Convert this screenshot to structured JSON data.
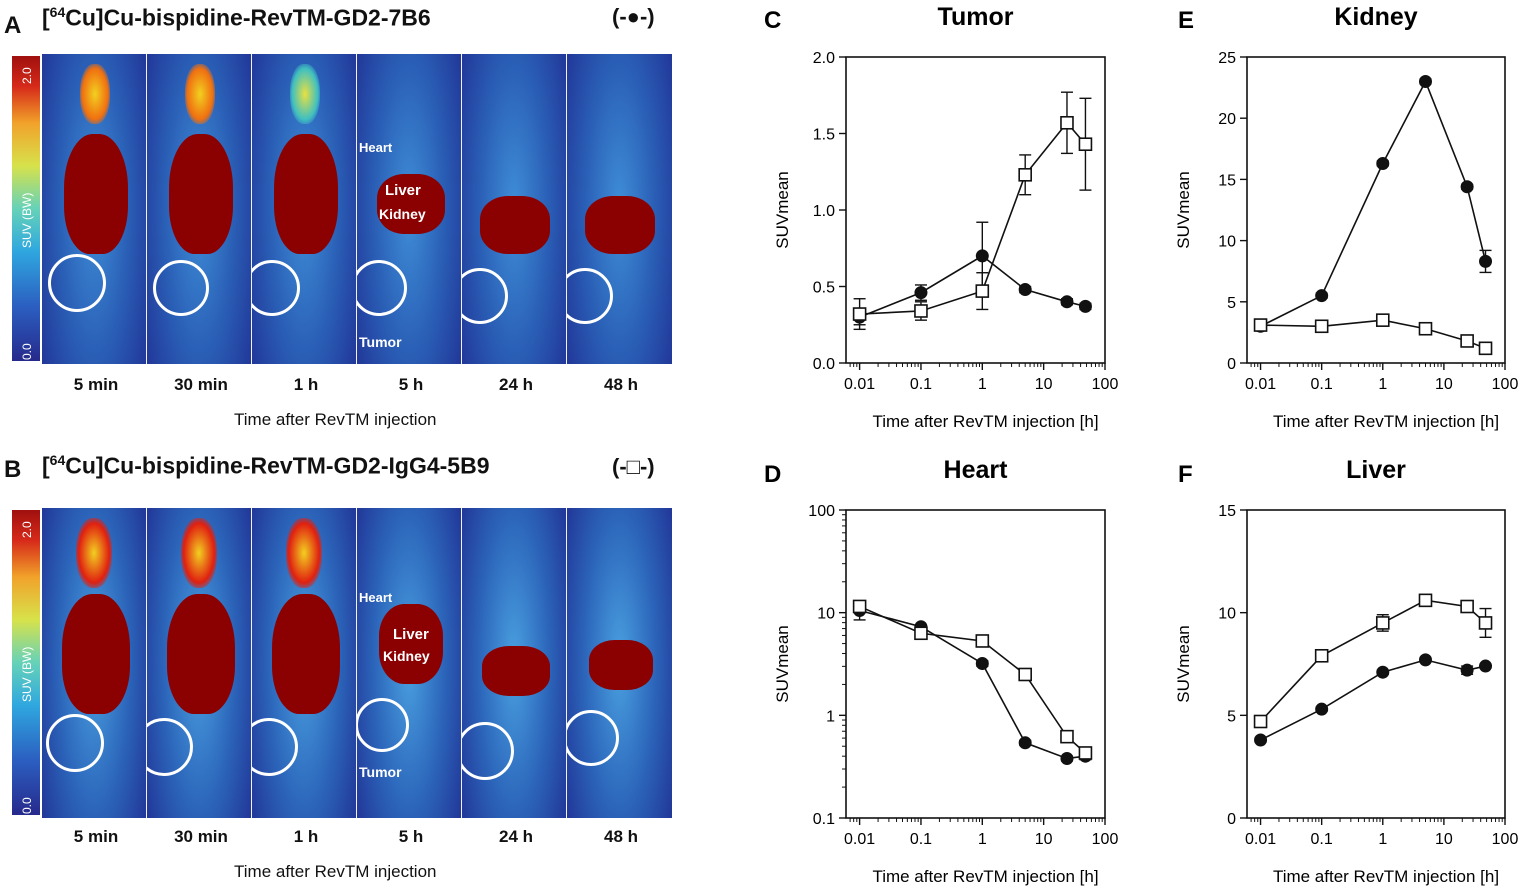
{
  "panelA": {
    "letter": "A",
    "title_prefix": "[",
    "title_sup": "64",
    "title_rest": "Cu]Cu-bispidine-RevTM-GD2-7B6",
    "legend_symbol": "(-●-)",
    "scale": {
      "max": "2.0",
      "min": "0.0",
      "label": "SUV (BW)"
    },
    "timepoints": [
      "5 min",
      "30 min",
      "1 h",
      "5 h",
      "24 h",
      "48 h"
    ],
    "annotations": {
      "heart": "Heart",
      "liver": "Liver",
      "kidney": "Kidney",
      "tumor": "Tumor"
    },
    "xcaption": "Time after RevTM injection"
  },
  "panelB": {
    "letter": "B",
    "title_prefix": "[",
    "title_sup": "64",
    "title_rest": "Cu]Cu-bispidine-RevTM-GD2-IgG4-5B9",
    "legend_symbol": "(-□-)",
    "scale": {
      "max": "2.0",
      "min": "0.0",
      "label": "SUV (BW)"
    },
    "timepoints": [
      "5 min",
      "30 min",
      "1 h",
      "5 h",
      "24 h",
      "48 h"
    ],
    "annotations": {
      "heart": "Heart",
      "liver": "Liver",
      "kidney": "Kidney",
      "tumor": "Tumor"
    },
    "xcaption": "Time after RevTM injection"
  },
  "chart_data": [
    {
      "letter": "C",
      "type": "line",
      "title": "Tumor",
      "xlabel": "Time after RevTM injection [h]",
      "ylabel": "SUVmean",
      "xscale": "log",
      "xlim": [
        0.006,
        100
      ],
      "xticks": [
        0.01,
        0.1,
        1,
        10,
        100
      ],
      "xticklabels": [
        "0.01",
        "0.1",
        "1",
        "10",
        "100"
      ],
      "yscale": "linear",
      "ylim": [
        0,
        2.0
      ],
      "yticks": [
        0,
        0.5,
        1.0,
        1.5,
        2.0
      ],
      "yticklabels": [
        "0.0",
        "0.5",
        "1.0",
        "1.5",
        "2.0"
      ],
      "x": [
        0.01,
        0.1,
        1,
        5,
        24,
        48
      ],
      "series": [
        {
          "name": "7B6",
          "marker": "filled-circle",
          "values": [
            0.3,
            0.46,
            0.7,
            0.48,
            0.4,
            0.37
          ],
          "errors": [
            0.05,
            0.05,
            0.22,
            0.02,
            0.02,
            0.02
          ]
        },
        {
          "name": "IgG4-5B9",
          "marker": "open-square",
          "values": [
            0.32,
            0.34,
            0.47,
            1.23,
            1.57,
            1.43
          ],
          "errors": [
            0.1,
            0.06,
            0.12,
            0.13,
            0.2,
            0.3
          ]
        }
      ]
    },
    {
      "letter": "D",
      "type": "line",
      "title": "Heart",
      "xlabel": "Time after RevTM injection [h]",
      "ylabel": "SUVmean",
      "xscale": "log",
      "xlim": [
        0.006,
        100
      ],
      "xticks": [
        0.01,
        0.1,
        1,
        10,
        100
      ],
      "xticklabels": [
        "0.01",
        "0.1",
        "1",
        "10",
        "100"
      ],
      "yscale": "log",
      "ylim": [
        0.1,
        100
      ],
      "yticks": [
        0.1,
        1,
        10,
        100
      ],
      "yticklabels": [
        "0.1",
        "1",
        "10",
        "100"
      ],
      "x": [
        0.01,
        0.1,
        1,
        5,
        24,
        48
      ],
      "series": [
        {
          "name": "7B6",
          "marker": "filled-circle",
          "values": [
            10.5,
            7.3,
            3.2,
            0.54,
            0.38,
            0.4
          ],
          "errors": [
            2.0,
            0.3,
            0.2,
            0.03,
            0.02,
            0.03
          ]
        },
        {
          "name": "IgG4-5B9",
          "marker": "open-square",
          "values": [
            11.5,
            6.3,
            5.3,
            2.5,
            0.62,
            0.43
          ],
          "errors": [
            1.5,
            0.3,
            0.2,
            0.1,
            0.05,
            0.03
          ]
        }
      ]
    },
    {
      "letter": "E",
      "type": "line",
      "title": "Kidney",
      "xlabel": "Time after RevTM injection [h]",
      "ylabel": "SUVmean",
      "xscale": "log",
      "xlim": [
        0.006,
        100
      ],
      "xticks": [
        0.01,
        0.1,
        1,
        10,
        100
      ],
      "xticklabels": [
        "0.01",
        "0.1",
        "1",
        "10",
        "100"
      ],
      "yscale": "linear",
      "ylim": [
        0,
        25
      ],
      "yticks": [
        0,
        5,
        10,
        15,
        20,
        25
      ],
      "yticklabels": [
        "0",
        "5",
        "10",
        "15",
        "20",
        "25"
      ],
      "x": [
        0.01,
        0.1,
        1,
        5,
        24,
        48
      ],
      "series": [
        {
          "name": "7B6",
          "marker": "filled-circle",
          "values": [
            3.0,
            5.5,
            16.3,
            23.0,
            14.4,
            8.3
          ],
          "errors": [
            0.3,
            0.2,
            0.2,
            0.2,
            0.2,
            0.9
          ]
        },
        {
          "name": "IgG4-5B9",
          "marker": "open-square",
          "values": [
            3.1,
            3.0,
            3.5,
            2.8,
            1.8,
            1.2
          ],
          "errors": [
            0.2,
            0.1,
            0.1,
            0.1,
            0.1,
            0.1
          ]
        }
      ]
    },
    {
      "letter": "F",
      "type": "line",
      "title": "Liver",
      "xlabel": "Time after RevTM injection [h]",
      "ylabel": "SUVmean",
      "xscale": "log",
      "xlim": [
        0.006,
        100
      ],
      "xticks": [
        0.01,
        0.1,
        1,
        10,
        100
      ],
      "xticklabels": [
        "0.01",
        "0.1",
        "1",
        "10",
        "100"
      ],
      "yscale": "linear",
      "ylim": [
        0,
        15
      ],
      "yticks": [
        0,
        5,
        10,
        15
      ],
      "yticklabels": [
        "0",
        "5",
        "10",
        "15"
      ],
      "x": [
        0.01,
        0.1,
        1,
        5,
        24,
        48
      ],
      "series": [
        {
          "name": "7B6",
          "marker": "filled-circle",
          "values": [
            3.8,
            5.3,
            7.1,
            7.7,
            7.2,
            7.4
          ],
          "errors": [
            0.1,
            0.1,
            0.1,
            0.1,
            0.2,
            0.1
          ]
        },
        {
          "name": "IgG4-5B9",
          "marker": "open-square",
          "values": [
            4.7,
            7.9,
            9.5,
            10.6,
            10.3,
            9.5
          ],
          "errors": [
            0.1,
            0.1,
            0.4,
            0.1,
            0.2,
            0.7
          ]
        }
      ]
    }
  ]
}
